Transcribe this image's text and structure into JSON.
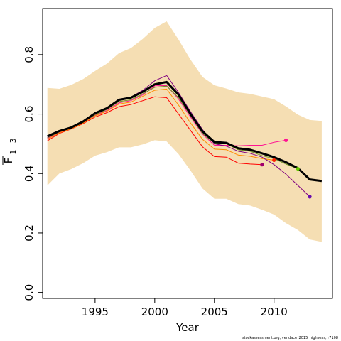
{
  "chart_data": {
    "type": "line",
    "title": "",
    "xlabel": "Year",
    "ylabel": {
      "main": "F",
      "sub": "1−3"
    },
    "xlim": [
      1990.6,
      2014.9
    ],
    "ylim": [
      -0.02,
      0.955
    ],
    "x_ticks": [
      1995,
      2000,
      2005,
      2010
    ],
    "y_ticks": [
      0.0,
      0.2,
      0.4,
      0.6,
      0.8
    ],
    "y_tick_labels": [
      "0.0",
      "0.2",
      "0.4",
      "0.6",
      "0.8"
    ],
    "grid": false,
    "legend": "none",
    "band": {
      "color": "#f5deb3",
      "x": [
        1991,
        1992,
        1993,
        1994,
        1995,
        1996,
        1997,
        1998,
        1999,
        2000,
        2001,
        2002,
        2003,
        2004,
        2005,
        2006,
        2007,
        2008,
        2009,
        2010,
        2011,
        2012,
        2013,
        2014
      ],
      "upper": [
        0.688,
        0.685,
        0.698,
        0.718,
        0.745,
        0.77,
        0.805,
        0.822,
        0.853,
        0.89,
        0.912,
        0.85,
        0.783,
        0.725,
        0.697,
        0.686,
        0.673,
        0.668,
        0.659,
        0.65,
        0.626,
        0.598,
        0.58,
        0.577
      ],
      "lower": [
        0.36,
        0.4,
        0.415,
        0.435,
        0.46,
        0.472,
        0.488,
        0.488,
        0.498,
        0.512,
        0.508,
        0.465,
        0.41,
        0.35,
        0.315,
        0.315,
        0.297,
        0.292,
        0.278,
        0.262,
        0.233,
        0.21,
        0.178,
        0.17
      ]
    },
    "main_series": {
      "color": "#000000",
      "x": [
        1991,
        1992,
        1993,
        1994,
        1995,
        1996,
        1997,
        1998,
        1999,
        2000,
        2001,
        2002,
        2003,
        2004,
        2005,
        2006,
        2007,
        2008,
        2009,
        2010,
        2011,
        2012,
        2013,
        2014
      ],
      "values": [
        0.525,
        0.543,
        0.555,
        0.575,
        0.603,
        0.62,
        0.648,
        0.655,
        0.675,
        0.7,
        0.708,
        0.665,
        0.6,
        0.542,
        0.506,
        0.503,
        0.485,
        0.48,
        0.468,
        0.455,
        0.438,
        0.418,
        0.38,
        0.375
      ]
    },
    "series": [
      {
        "color": "#ff0000",
        "x": [
          1991,
          1992,
          1993,
          1994,
          1995,
          1996,
          1997,
          1998,
          1999,
          2000,
          2001,
          2002,
          2003,
          2004,
          2005,
          2006,
          2007,
          2008,
          2009
        ],
        "values": [
          0.51,
          0.535,
          0.55,
          0.568,
          0.59,
          0.605,
          0.625,
          0.632,
          0.645,
          0.658,
          0.655,
          0.6,
          0.545,
          0.49,
          0.457,
          0.455,
          0.435,
          0.432,
          0.43
        ]
      },
      {
        "color": "#ff1493",
        "x": [
          1991,
          1992,
          1993,
          1994,
          1995,
          1996,
          1997,
          1998,
          1999,
          2000,
          2001,
          2002,
          2003,
          2004,
          2005,
          2006,
          2007,
          2008,
          2009,
          2010,
          2011
        ],
        "values": [
          0.518,
          0.538,
          0.552,
          0.572,
          0.596,
          0.612,
          0.638,
          0.645,
          0.665,
          0.695,
          0.696,
          0.65,
          0.59,
          0.533,
          0.495,
          0.495,
          0.493,
          0.495,
          0.495,
          0.505,
          0.512
        ]
      },
      {
        "color": "#6b8e23",
        "x": [
          1991,
          1992,
          1993,
          1994,
          1995,
          1996,
          1997,
          1998,
          1999,
          2000,
          2001,
          2002,
          2003,
          2004,
          2005,
          2006,
          2007,
          2008,
          2009,
          2010,
          2011,
          2012
        ],
        "values": [
          0.52,
          0.54,
          0.555,
          0.573,
          0.598,
          0.616,
          0.642,
          0.648,
          0.668,
          0.69,
          0.694,
          0.655,
          0.595,
          0.535,
          0.502,
          0.5,
          0.48,
          0.475,
          0.46,
          0.45,
          0.432,
          0.416
        ]
      },
      {
        "color": "#ff8c00",
        "x": [
          1991,
          1992,
          1993,
          1994,
          1995,
          1996,
          1997,
          1998,
          1999,
          2000,
          2001,
          2002,
          2003,
          2004,
          2005,
          2006,
          2007,
          2008,
          2009,
          2010
        ],
        "values": [
          0.515,
          0.537,
          0.551,
          0.57,
          0.594,
          0.61,
          0.634,
          0.64,
          0.66,
          0.68,
          0.684,
          0.63,
          0.57,
          0.515,
          0.482,
          0.48,
          0.462,
          0.458,
          0.45,
          0.445
        ]
      },
      {
        "color": "#800080",
        "x": [
          1991,
          1992,
          1993,
          1994,
          1995,
          1996,
          1997,
          1998,
          1999,
          2000,
          2001,
          2002,
          2003,
          2004,
          2005,
          2006,
          2007,
          2008,
          2009,
          2010,
          2011,
          2012,
          2013
        ],
        "values": [
          0.522,
          0.542,
          0.556,
          0.576,
          0.602,
          0.622,
          0.65,
          0.657,
          0.68,
          0.712,
          0.73,
          0.672,
          0.608,
          0.548,
          0.5,
          0.492,
          0.475,
          0.468,
          0.455,
          0.43,
          0.398,
          0.36,
          0.322
        ]
      }
    ],
    "end_points": [
      {
        "x": 2009,
        "y": 0.43,
        "color": "#a0006e"
      },
      {
        "x": 2010,
        "y": 0.445,
        "color": "#ff2000"
      },
      {
        "x": 2011,
        "y": 0.512,
        "color": "#ff1493"
      },
      {
        "x": 2012,
        "y": 0.416,
        "color": "#66cc00"
      },
      {
        "x": 2013,
        "y": 0.322,
        "color": "#6a0dad"
      }
    ],
    "credit": "stockassessment.org, vendace_2015_highseas, r7108"
  }
}
